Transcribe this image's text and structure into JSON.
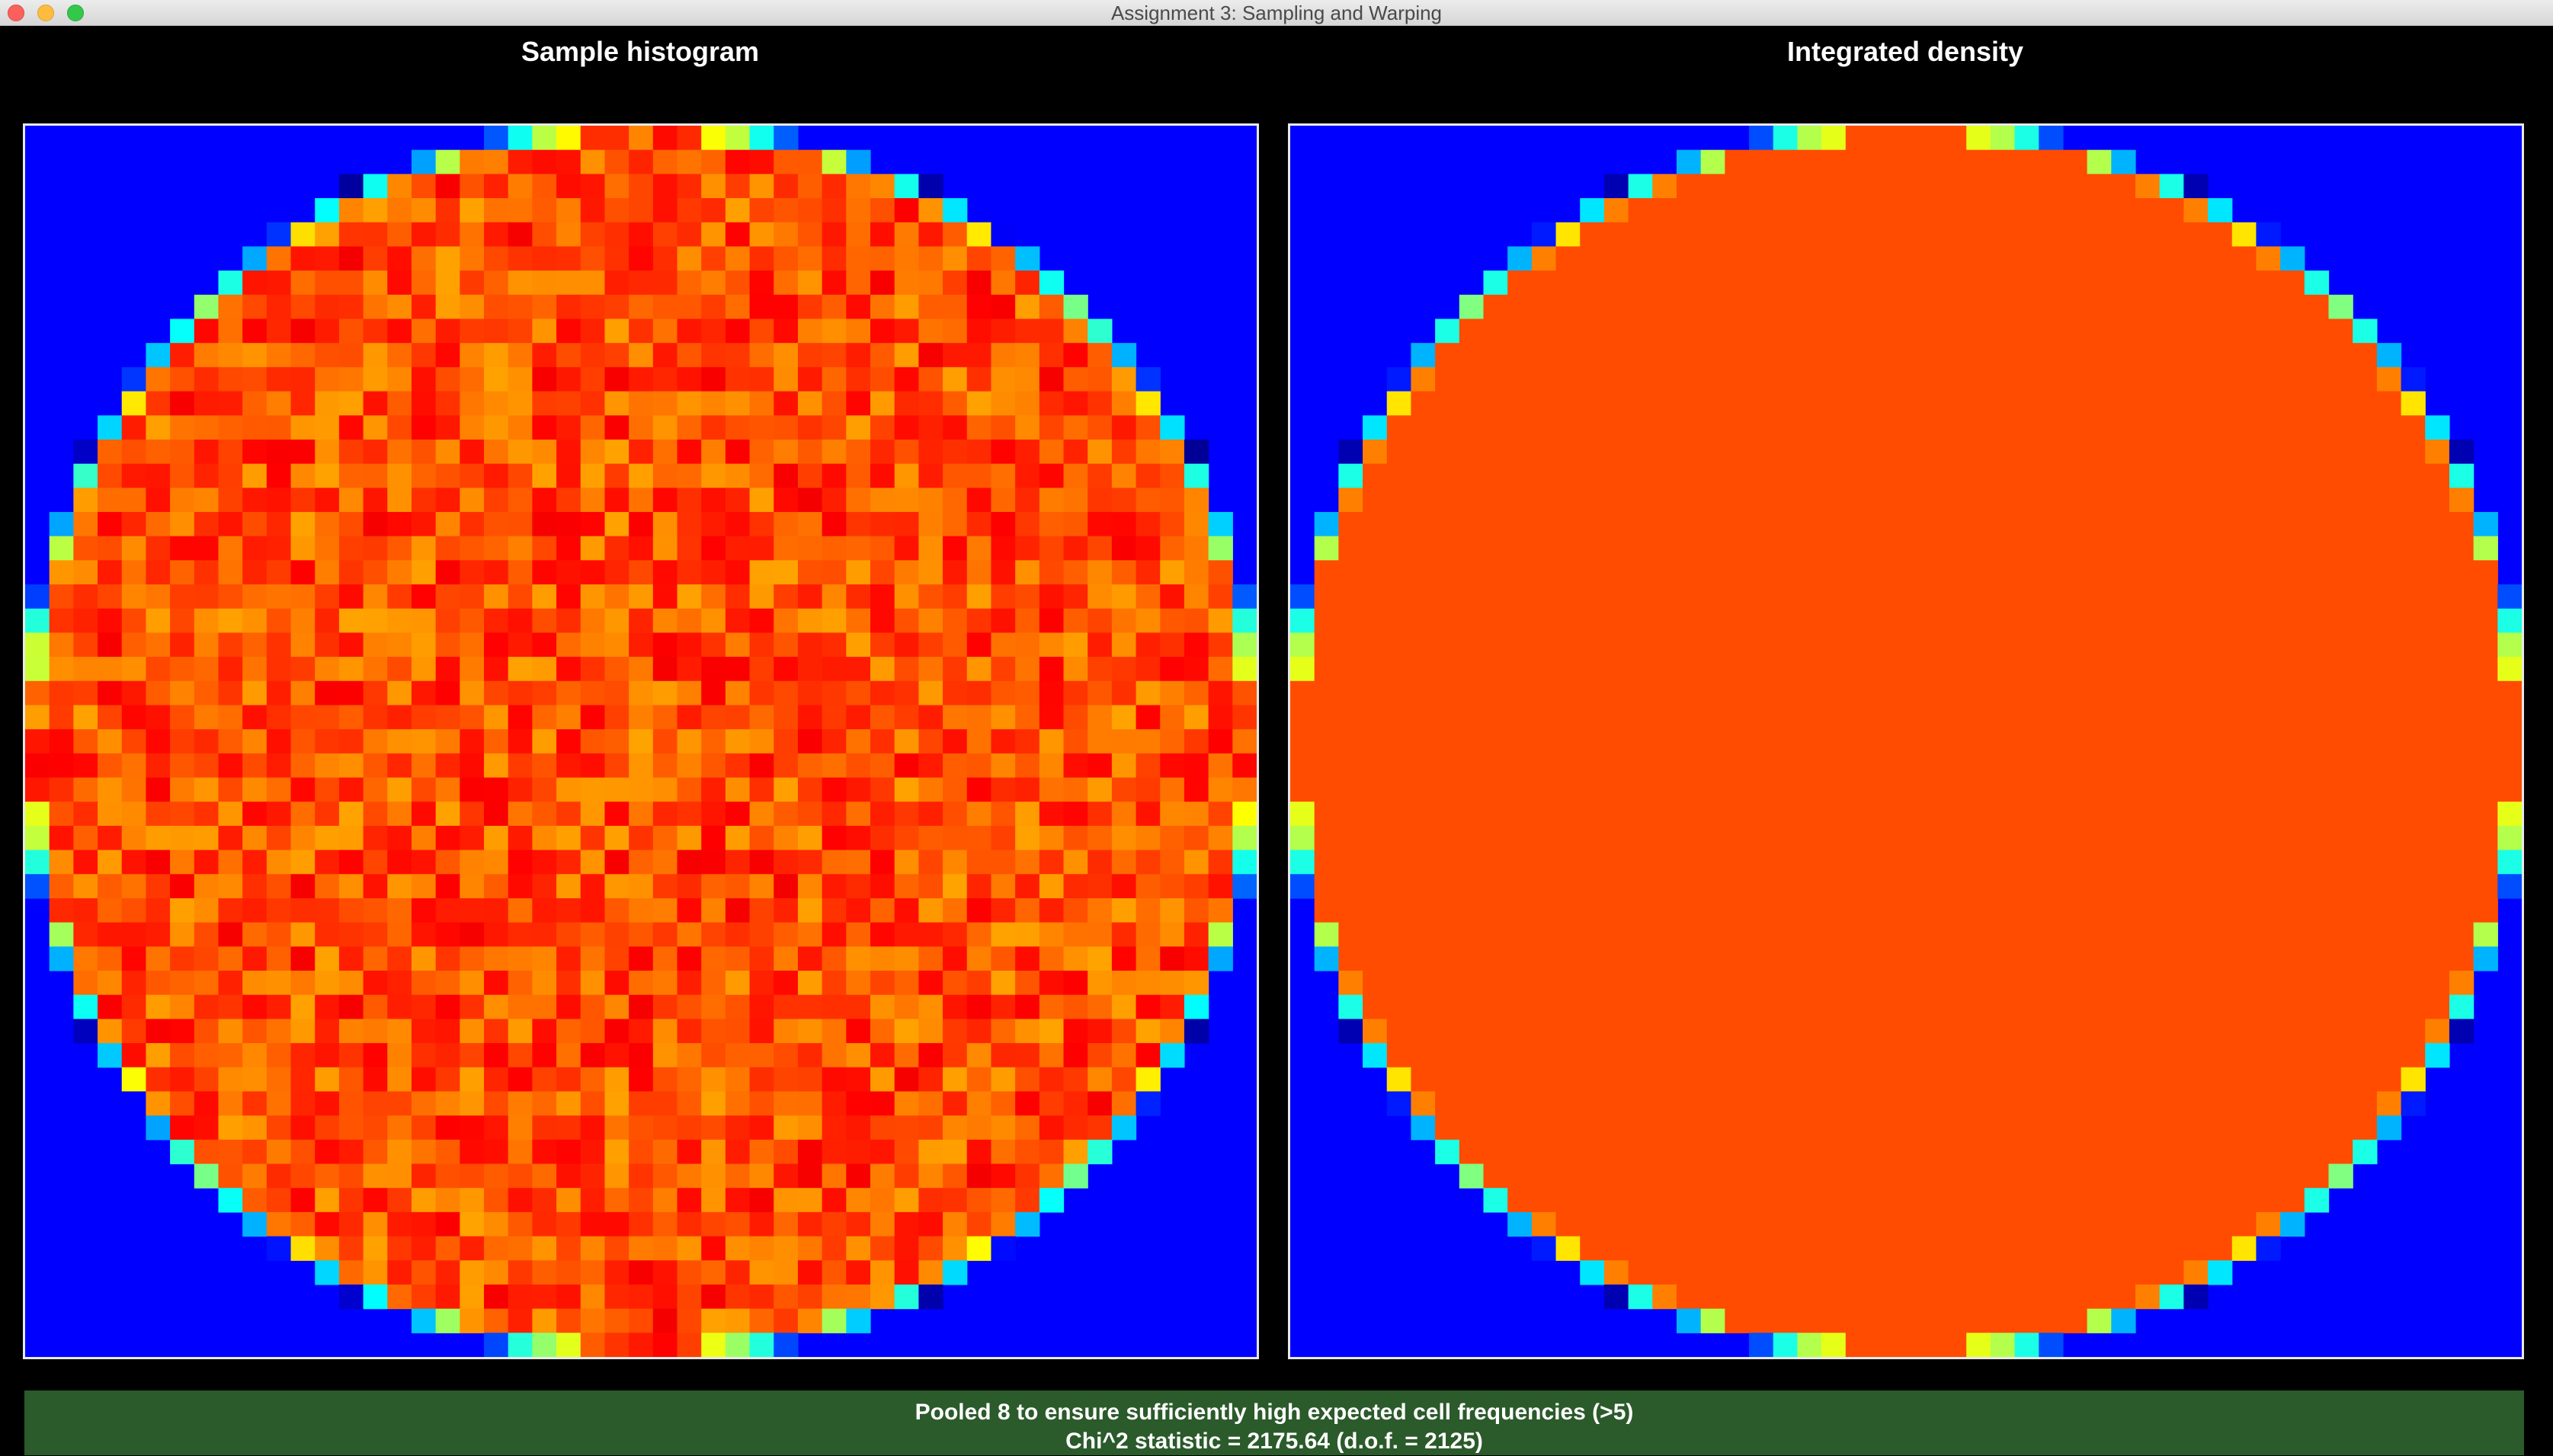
{
  "window": {
    "title": "Assignment 3: Sampling and Warping"
  },
  "panels": {
    "left": {
      "title": "Sample histogram"
    },
    "right": {
      "title": "Integrated density"
    }
  },
  "status": {
    "line1": "Pooled 8 to ensure sufficiently high expected cell frequencies (>5)",
    "line2": "Chi^2 statistic = 2175.64 (d.o.f. = 2125)"
  },
  "chart_data": [
    {
      "type": "heatmap",
      "title": "Sample histogram",
      "grid_size": [
        51,
        51
      ],
      "domain": "unit disk",
      "colormap": "jet",
      "outside_value": "min",
      "interior": "noisy near-uniform (orange/red jitter)",
      "boundary": "partial-coverage cells ramp blue-cyan-green-yellow"
    },
    {
      "type": "heatmap",
      "title": "Integrated density",
      "grid_size": [
        51,
        51
      ],
      "domain": "unit disk",
      "colormap": "jet",
      "outside_value": "min",
      "interior": "uniform (solid orange)",
      "boundary": "partial-coverage cells ramp blue-cyan-green-yellow",
      "colors": {
        "interior": "#ff6600",
        "background": "#0000ff"
      }
    }
  ]
}
